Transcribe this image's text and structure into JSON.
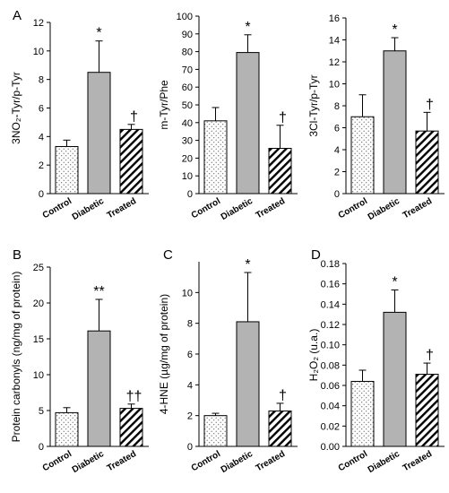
{
  "chart_data": [
    {
      "type": "bar",
      "panel": "A",
      "ylabel": "3NO₂-Tyr/p-Tyr",
      "ylim": [
        0,
        12
      ],
      "yticks": [
        "0",
        "2",
        "4",
        "6",
        "8",
        "10",
        "12"
      ],
      "categories": [
        "Control",
        "Diabetic",
        "Treated"
      ],
      "values": [
        3.3,
        8.5,
        4.5
      ],
      "errors": [
        0.45,
        2.2,
        0.35
      ],
      "significance": [
        "",
        "*",
        "†"
      ]
    },
    {
      "type": "bar",
      "panel": "",
      "ylabel": "m-Tyr/Phe",
      "ylim": [
        0,
        100
      ],
      "yticks": [
        "0",
        "10",
        "20",
        "30",
        "40",
        "50",
        "60",
        "70",
        "80",
        "90",
        "100"
      ],
      "categories": [
        "Control",
        "Diabetic",
        "Treated"
      ],
      "values": [
        41,
        79.5,
        25.5
      ],
      "errors": [
        7.5,
        10,
        13
      ],
      "significance": [
        "",
        "*",
        "†"
      ]
    },
    {
      "type": "bar",
      "panel": "",
      "ylabel": "3Cl-Tyr/p-Tyr",
      "ylim": [
        0,
        16
      ],
      "yticks": [
        "0",
        "2",
        "4",
        "6",
        "8",
        "10",
        "12",
        "14",
        "16"
      ],
      "categories": [
        "Control",
        "Diabetic",
        "Treated"
      ],
      "values": [
        7,
        13,
        5.7
      ],
      "errors": [
        2,
        1.2,
        1.7
      ],
      "significance": [
        "",
        "*",
        "†"
      ]
    },
    {
      "type": "bar",
      "panel": "B",
      "ylabel": "Protein carbonyls (ng/mg of protein)",
      "ylim": [
        0,
        25
      ],
      "yticks": [
        "0",
        "5",
        "10",
        "15",
        "20",
        "25"
      ],
      "categories": [
        "Control",
        "Diabetic",
        "Treated"
      ],
      "values": [
        4.7,
        16.1,
        5.3
      ],
      "errors": [
        0.7,
        4.4,
        0.6
      ],
      "significance": [
        "",
        "**",
        "††"
      ]
    },
    {
      "type": "bar",
      "panel": "C",
      "ylabel": "4-HNE (µg/mg of protein)",
      "ylim": [
        0,
        12
      ],
      "yticks": [
        "0",
        "2",
        "4",
        "6",
        "8",
        "10"
      ],
      "categories": [
        "Control",
        "Diabetic",
        "Treated"
      ],
      "values": [
        2.0,
        8.1,
        2.3
      ],
      "errors": [
        0.15,
        3.2,
        0.5
      ],
      "significance": [
        "",
        "*",
        "†"
      ]
    },
    {
      "type": "bar",
      "panel": "D",
      "ylabel": "H₂O₂ (u.a.)",
      "ylim": [
        0,
        0.18
      ],
      "yticks": [
        "0.00",
        "0.02",
        "0.04",
        "0.06",
        "0.08",
        "0.10",
        "0.12",
        "0.14",
        "0.16",
        "0.18"
      ],
      "categories": [
        "Control",
        "Diabetic",
        "Treated"
      ],
      "values": [
        0.064,
        0.132,
        0.071
      ],
      "errors": [
        0.011,
        0.022,
        0.011
      ],
      "significance": [
        "",
        "*",
        "†"
      ]
    }
  ],
  "colors": {
    "bar_outline": "#000000",
    "diabetic_fill": "#b3b3b3",
    "control_dots": "#555555",
    "treated_hatch": "#000000"
  }
}
